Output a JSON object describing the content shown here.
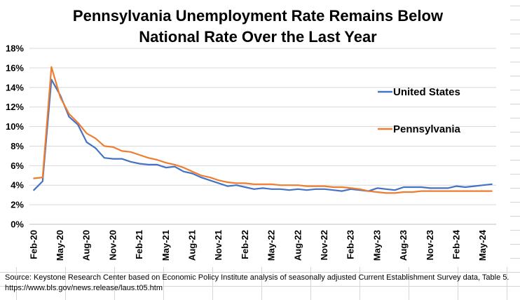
{
  "chart_data": {
    "type": "line",
    "title_lines": [
      "Pennsylvania Unemployment Rate Remains Below",
      "National Rate Over the Last Year"
    ],
    "ylim": [
      0,
      18
    ],
    "y_ticks": [
      0,
      2,
      4,
      6,
      8,
      10,
      12,
      14,
      16,
      18
    ],
    "y_tick_labels": [
      "0%",
      "2%",
      "4%",
      "6%",
      "8%",
      "10%",
      "12%",
      "14%",
      "16%",
      "18%"
    ],
    "x_tick_labels": [
      "Feb-20",
      "May-20",
      "Aug-20",
      "Nov-20",
      "Feb-21",
      "May-21",
      "Aug-21",
      "Nov-21",
      "Feb-22",
      "May-22",
      "Aug-22",
      "Nov-22",
      "Feb-23",
      "May-23",
      "Aug-23",
      "Nov-23",
      "Feb-24",
      "May-24"
    ],
    "x": [
      "Feb-20",
      "Mar-20",
      "Apr-20",
      "May-20",
      "Jun-20",
      "Jul-20",
      "Aug-20",
      "Sep-20",
      "Oct-20",
      "Nov-20",
      "Dec-20",
      "Jan-21",
      "Feb-21",
      "Mar-21",
      "Apr-21",
      "May-21",
      "Jun-21",
      "Jul-21",
      "Aug-21",
      "Sep-21",
      "Oct-21",
      "Nov-21",
      "Dec-21",
      "Jan-22",
      "Feb-22",
      "Mar-22",
      "Apr-22",
      "May-22",
      "Jun-22",
      "Jul-22",
      "Aug-22",
      "Sep-22",
      "Oct-22",
      "Nov-22",
      "Dec-22",
      "Jan-23",
      "Feb-23",
      "Mar-23",
      "Apr-23",
      "May-23",
      "Jun-23",
      "Jul-23",
      "Aug-23",
      "Sep-23",
      "Oct-23",
      "Nov-23",
      "Dec-23",
      "Jan-24",
      "Feb-24",
      "Mar-24",
      "Apr-24",
      "May-24",
      "Jun-24"
    ],
    "series": [
      {
        "name": "United States",
        "color": "#4472C4",
        "values": [
          3.5,
          4.4,
          14.8,
          13.2,
          11.0,
          10.2,
          8.4,
          7.8,
          6.8,
          6.7,
          6.7,
          6.4,
          6.2,
          6.1,
          6.1,
          5.8,
          5.9,
          5.4,
          5.2,
          4.8,
          4.5,
          4.2,
          3.9,
          4.0,
          3.8,
          3.6,
          3.7,
          3.6,
          3.6,
          3.5,
          3.6,
          3.5,
          3.6,
          3.6,
          3.5,
          3.4,
          3.6,
          3.5,
          3.4,
          3.7,
          3.6,
          3.5,
          3.8,
          3.8,
          3.8,
          3.7,
          3.7,
          3.7,
          3.9,
          3.8,
          3.9,
          4.0,
          4.1
        ]
      },
      {
        "name": "Pennsylvania",
        "color": "#ED7D31",
        "values": [
          4.7,
          4.8,
          16.1,
          13.0,
          11.3,
          10.4,
          9.3,
          8.8,
          8.0,
          7.9,
          7.5,
          7.4,
          7.1,
          6.8,
          6.6,
          6.3,
          6.1,
          5.8,
          5.4,
          5.0,
          4.8,
          4.5,
          4.3,
          4.2,
          4.2,
          4.1,
          4.1,
          4.1,
          4.0,
          4.0,
          4.0,
          3.9,
          3.9,
          3.9,
          3.8,
          3.8,
          3.7,
          3.6,
          3.4,
          3.3,
          3.2,
          3.2,
          3.3,
          3.3,
          3.4,
          3.4,
          3.4,
          3.4,
          3.4,
          3.4,
          3.4,
          3.4,
          3.4
        ]
      }
    ],
    "legend_position": "right"
  },
  "source": {
    "line1": "Source: Keystone Research Center based on Economic Policy Institute analysis of seasonally adjusted Current Establishment Survey data, Table 5.",
    "line2": "https://www.bls.gov/news.release/laus.t05.htm"
  }
}
